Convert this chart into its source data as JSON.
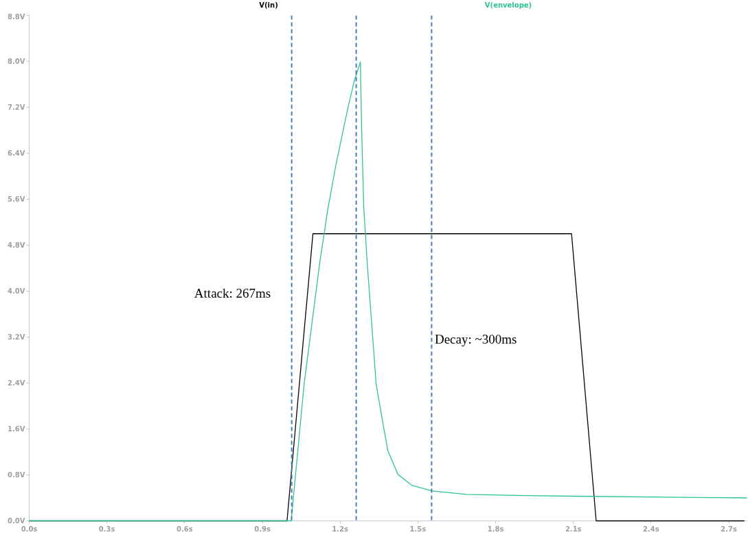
{
  "chart_data": {
    "type": "line",
    "xlim": [
      0,
      2.77
    ],
    "ylim": [
      0,
      8.8
    ],
    "xticks": [
      {
        "value": 0,
        "label": "0.0s"
      },
      {
        "value": 0.3,
        "label": "0.3s"
      },
      {
        "value": 0.6,
        "label": "0.6s"
      },
      {
        "value": 0.9,
        "label": "0.9s"
      },
      {
        "value": 1.2,
        "label": "1.2s"
      },
      {
        "value": 1.5,
        "label": "1.5s"
      },
      {
        "value": 1.8,
        "label": "1.8s"
      },
      {
        "value": 2.1,
        "label": "2.1s"
      },
      {
        "value": 2.4,
        "label": "2.4s"
      },
      {
        "value": 2.7,
        "label": "2.7s"
      }
    ],
    "yticks": [
      {
        "value": 0,
        "label": "0.0V"
      },
      {
        "value": 0.8,
        "label": "0.8V"
      },
      {
        "value": 1.6,
        "label": "1.6V"
      },
      {
        "value": 2.4,
        "label": "2.4V"
      },
      {
        "value": 3.2,
        "label": "3.2V"
      },
      {
        "value": 4,
        "label": "4.0V"
      },
      {
        "value": 4.8,
        "label": "4.8V"
      },
      {
        "value": 5.6,
        "label": "5.6V"
      },
      {
        "value": 6.4,
        "label": "6.4V"
      },
      {
        "value": 7.2,
        "label": "7.2V"
      },
      {
        "value": 8,
        "label": "8.0V"
      },
      {
        "value": 8.8,
        "label": "8.8V"
      }
    ],
    "series": [
      {
        "name": "V(in)",
        "color": "#000000",
        "x": [
          0,
          0.995,
          1.095,
          2.093,
          2.188,
          2.76
        ],
        "values": [
          0,
          0,
          5.0,
          5.0,
          0,
          0
        ]
      },
      {
        "name": "V(envelope)",
        "color": "#2ec492",
        "x": [
          0,
          1.011,
          1.061,
          1.122,
          1.138,
          1.151,
          1.183,
          1.212,
          1.235,
          1.254,
          1.278,
          1.28,
          1.283,
          1.291,
          1.304,
          1.339,
          1.362,
          1.384,
          1.423,
          1.476,
          1.556,
          1.688,
          1.918,
          2.093,
          2.77
        ],
        "values": [
          0,
          0,
          2.38,
          4.52,
          4.99,
          5.39,
          6.18,
          6.81,
          7.29,
          7.65,
          7.99,
          7.53,
          6.81,
          5.47,
          4.52,
          2.38,
          1.78,
          1.22,
          0.81,
          0.62,
          0.52,
          0.46,
          0.44,
          0.43,
          0.4
        ]
      }
    ],
    "ref_lines": [
      {
        "axis": "x",
        "value": 1.013,
        "color": "#4a7abf",
        "line_style": "dashed"
      },
      {
        "axis": "x",
        "value": 1.262,
        "color": "#4a7abf",
        "line_style": "dashed"
      },
      {
        "axis": "x",
        "value": 1.553,
        "color": "#4a7abf",
        "line_style": "dashed"
      }
    ],
    "annotations": [
      "Attack: 267ms",
      "Decay: ~300ms"
    ],
    "grid": false,
    "marker": "none",
    "line_style": "solid"
  }
}
